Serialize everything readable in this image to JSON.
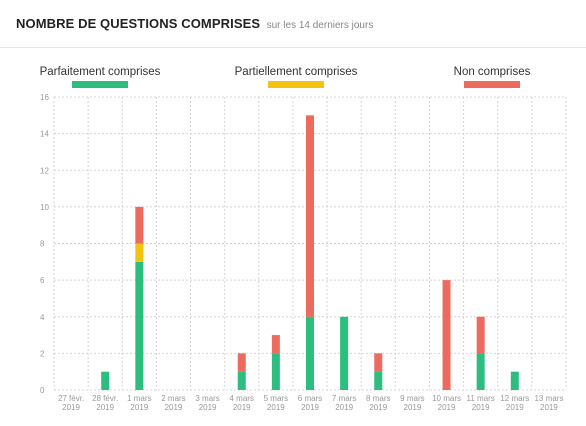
{
  "header": {
    "title": "NOMBRE DE QUESTIONS COMPRISES",
    "subtitle": "sur les 14 derniers jours"
  },
  "chart_data": {
    "type": "bar",
    "stacked": true,
    "categories": [
      [
        "27 févr.",
        "2019"
      ],
      [
        "28 févr.",
        "2019"
      ],
      [
        "1 mars",
        "2019"
      ],
      [
        "2 mars",
        "2019"
      ],
      [
        "3 mars",
        "2019"
      ],
      [
        "4 mars",
        "2019"
      ],
      [
        "5 mars",
        "2019"
      ],
      [
        "6 mars",
        "2019"
      ],
      [
        "7 mars",
        "2019"
      ],
      [
        "8 mars",
        "2019"
      ],
      [
        "9 mars",
        "2019"
      ],
      [
        "10 mars",
        "2019"
      ],
      [
        "11 mars",
        "2019"
      ],
      [
        "12 mars",
        "2019"
      ],
      [
        "13 mars",
        "2019"
      ]
    ],
    "series": [
      {
        "name": "Parfaitement comprises",
        "color": "#2dbd7e",
        "values": [
          0,
          1,
          7,
          0,
          0,
          1,
          2,
          4,
          4,
          1,
          0,
          0,
          2,
          1,
          0
        ]
      },
      {
        "name": "Partiellement comprises",
        "color": "#f2c40f",
        "values": [
          0,
          0,
          1,
          0,
          0,
          0,
          0,
          0,
          0,
          0,
          0,
          0,
          0,
          0,
          0
        ]
      },
      {
        "name": "Non comprises",
        "color": "#ec6b5e",
        "values": [
          0,
          0,
          2,
          0,
          0,
          1,
          1,
          11,
          0,
          1,
          0,
          6,
          2,
          0,
          0
        ]
      }
    ],
    "ylim": [
      0,
      16
    ],
    "yticks": [
      0,
      2,
      4,
      6,
      8,
      10,
      12,
      14,
      16
    ],
    "grid": true,
    "legend_position": "top"
  }
}
